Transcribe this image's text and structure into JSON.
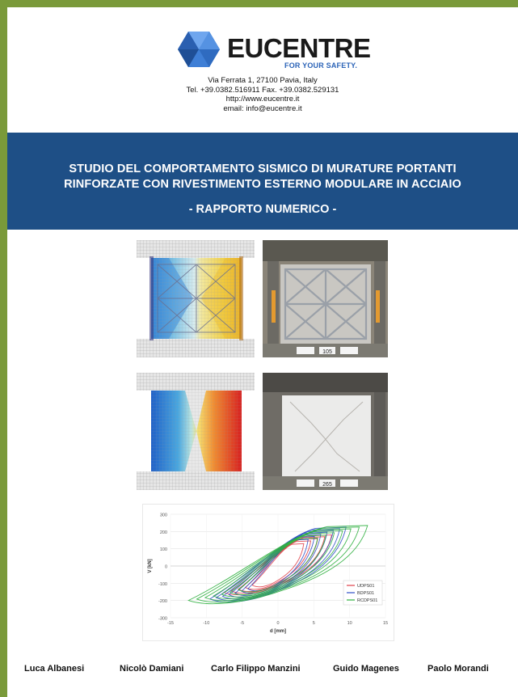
{
  "header": {
    "logo_name": "EUCENTRE",
    "logo_tagline": "FOR YOUR SAFETY.",
    "address_lines": [
      "Via Ferrata 1, 27100 Pavia, Italy",
      "Tel. +39.0382.516911 Fax. +39.0382.529131",
      "http://www.eucentre.it",
      "email: info@eucentre.it"
    ]
  },
  "title_band": {
    "title_line1": "STUDIO DEL COMPORTAMENTO SISMICO DI MURATURE PORTANTI",
    "title_line2": "RINFORZATE CON RIVESTIMENTO ESTERNO MODULARE IN ACCIAIO",
    "subtitle": "- RAPPORTO NUMERICO -"
  },
  "photo_labels": {
    "top_tag": "105",
    "bottom_tag": "265"
  },
  "chart_data": {
    "type": "line",
    "xlabel": "d [mm]",
    "ylabel": "V [kN]",
    "xlim": [
      -15,
      15
    ],
    "ylim": [
      -300,
      300
    ],
    "xticks": [
      -15,
      -10,
      -5,
      0,
      5,
      10,
      15
    ],
    "yticks": [
      -300,
      -200,
      -100,
      0,
      100,
      200,
      300
    ],
    "legend_position": "bottom-right",
    "series": [
      {
        "name": "UDPS01",
        "color": "#e0404a",
        "max_d": 7.5,
        "max_v": 180,
        "loops": 5
      },
      {
        "name": "BDPS01",
        "color": "#3050c8",
        "max_d": 9.5,
        "max_v": 225,
        "loops": 7
      },
      {
        "name": "RCDPS01",
        "color": "#30b040",
        "max_d": 12.5,
        "max_v": 235,
        "loops": 7
      }
    ]
  },
  "authors": [
    "Luca Albanesi",
    "Nicolò Damiani",
    "Carlo Filippo Manzini",
    "Guido Magenes",
    "Paolo Morandi"
  ]
}
